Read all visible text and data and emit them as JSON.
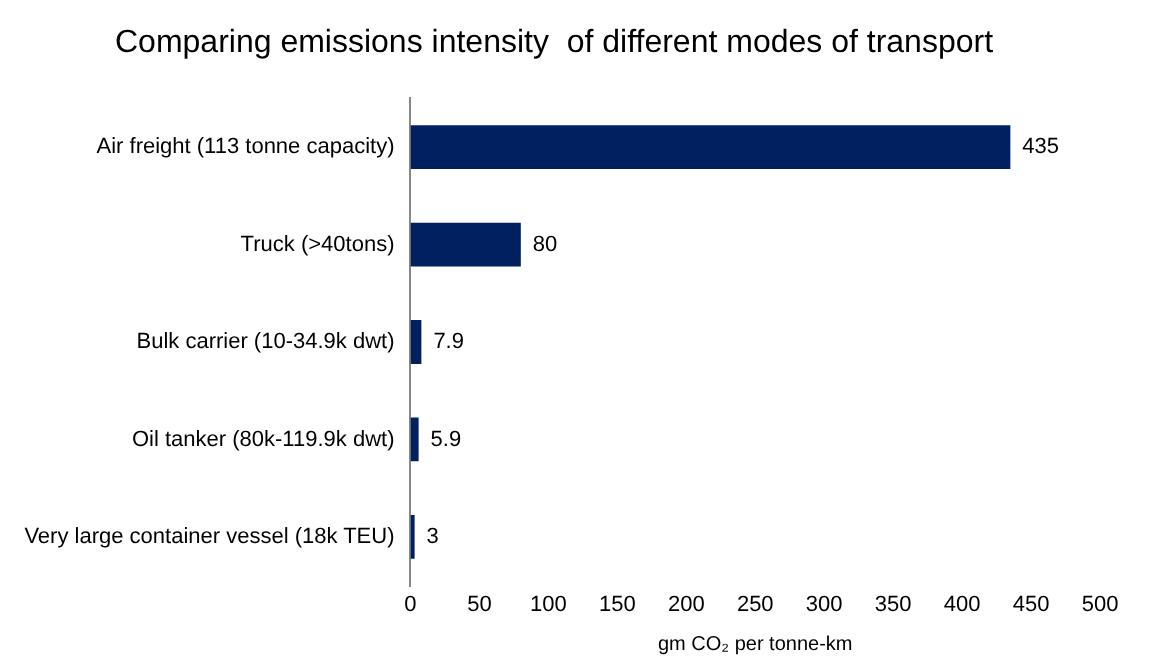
{
  "chart_data": {
    "type": "bar",
    "orientation": "horizontal",
    "title": "Comparing emissions intensity  of different modes of transport",
    "xlabel": "gm CO₂ per tonne-km",
    "categories": [
      "Air freight (113 tonne capacity)",
      "Truck (>40tons)",
      "Bulk carrier (10-34.9k dwt)",
      "Oil tanker (80k-119.9k dwt)",
      "Very large container vessel (18k TEU)"
    ],
    "values": [
      435,
      80,
      7.9,
      5.9,
      3
    ],
    "color": "#002060",
    "data_labels": true,
    "grid": false,
    "legend": false,
    "xlim": [
      0,
      500
    ],
    "xticks": [
      0,
      50,
      100,
      150,
      200,
      250,
      300,
      350,
      400,
      450,
      500
    ]
  }
}
